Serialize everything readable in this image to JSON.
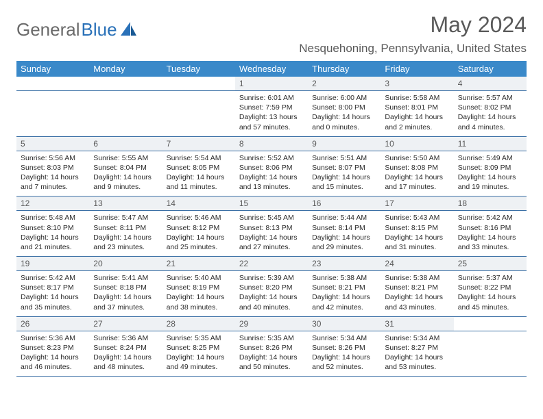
{
  "logo": {
    "part1": "General",
    "part2": "Blue"
  },
  "title": "May 2024",
  "location": "Nesquehoning, Pennsylvania, United States",
  "colors": {
    "header_bg": "#3a89c9",
    "header_text": "#ffffff",
    "daynum_bg": "#eef1f4",
    "daynum_text": "#595959",
    "body_text": "#2a2a2a",
    "title_text": "#595959",
    "logo_gray": "#6a6a6a",
    "logo_blue": "#2a71b8",
    "row_border": "#3a6fa5"
  },
  "day_labels": [
    "Sunday",
    "Monday",
    "Tuesday",
    "Wednesday",
    "Thursday",
    "Friday",
    "Saturday"
  ],
  "weeks": [
    [
      null,
      null,
      null,
      {
        "n": "1",
        "sr": "6:01 AM",
        "ss": "7:59 PM",
        "dl": "13 hours and 57 minutes."
      },
      {
        "n": "2",
        "sr": "6:00 AM",
        "ss": "8:00 PM",
        "dl": "14 hours and 0 minutes."
      },
      {
        "n": "3",
        "sr": "5:58 AM",
        "ss": "8:01 PM",
        "dl": "14 hours and 2 minutes."
      },
      {
        "n": "4",
        "sr": "5:57 AM",
        "ss": "8:02 PM",
        "dl": "14 hours and 4 minutes."
      }
    ],
    [
      {
        "n": "5",
        "sr": "5:56 AM",
        "ss": "8:03 PM",
        "dl": "14 hours and 7 minutes."
      },
      {
        "n": "6",
        "sr": "5:55 AM",
        "ss": "8:04 PM",
        "dl": "14 hours and 9 minutes."
      },
      {
        "n": "7",
        "sr": "5:54 AM",
        "ss": "8:05 PM",
        "dl": "14 hours and 11 minutes."
      },
      {
        "n": "8",
        "sr": "5:52 AM",
        "ss": "8:06 PM",
        "dl": "14 hours and 13 minutes."
      },
      {
        "n": "9",
        "sr": "5:51 AM",
        "ss": "8:07 PM",
        "dl": "14 hours and 15 minutes."
      },
      {
        "n": "10",
        "sr": "5:50 AM",
        "ss": "8:08 PM",
        "dl": "14 hours and 17 minutes."
      },
      {
        "n": "11",
        "sr": "5:49 AM",
        "ss": "8:09 PM",
        "dl": "14 hours and 19 minutes."
      }
    ],
    [
      {
        "n": "12",
        "sr": "5:48 AM",
        "ss": "8:10 PM",
        "dl": "14 hours and 21 minutes."
      },
      {
        "n": "13",
        "sr": "5:47 AM",
        "ss": "8:11 PM",
        "dl": "14 hours and 23 minutes."
      },
      {
        "n": "14",
        "sr": "5:46 AM",
        "ss": "8:12 PM",
        "dl": "14 hours and 25 minutes."
      },
      {
        "n": "15",
        "sr": "5:45 AM",
        "ss": "8:13 PM",
        "dl": "14 hours and 27 minutes."
      },
      {
        "n": "16",
        "sr": "5:44 AM",
        "ss": "8:14 PM",
        "dl": "14 hours and 29 minutes."
      },
      {
        "n": "17",
        "sr": "5:43 AM",
        "ss": "8:15 PM",
        "dl": "14 hours and 31 minutes."
      },
      {
        "n": "18",
        "sr": "5:42 AM",
        "ss": "8:16 PM",
        "dl": "14 hours and 33 minutes."
      }
    ],
    [
      {
        "n": "19",
        "sr": "5:42 AM",
        "ss": "8:17 PM",
        "dl": "14 hours and 35 minutes."
      },
      {
        "n": "20",
        "sr": "5:41 AM",
        "ss": "8:18 PM",
        "dl": "14 hours and 37 minutes."
      },
      {
        "n": "21",
        "sr": "5:40 AM",
        "ss": "8:19 PM",
        "dl": "14 hours and 38 minutes."
      },
      {
        "n": "22",
        "sr": "5:39 AM",
        "ss": "8:20 PM",
        "dl": "14 hours and 40 minutes."
      },
      {
        "n": "23",
        "sr": "5:38 AM",
        "ss": "8:21 PM",
        "dl": "14 hours and 42 minutes."
      },
      {
        "n": "24",
        "sr": "5:38 AM",
        "ss": "8:21 PM",
        "dl": "14 hours and 43 minutes."
      },
      {
        "n": "25",
        "sr": "5:37 AM",
        "ss": "8:22 PM",
        "dl": "14 hours and 45 minutes."
      }
    ],
    [
      {
        "n": "26",
        "sr": "5:36 AM",
        "ss": "8:23 PM",
        "dl": "14 hours and 46 minutes."
      },
      {
        "n": "27",
        "sr": "5:36 AM",
        "ss": "8:24 PM",
        "dl": "14 hours and 48 minutes."
      },
      {
        "n": "28",
        "sr": "5:35 AM",
        "ss": "8:25 PM",
        "dl": "14 hours and 49 minutes."
      },
      {
        "n": "29",
        "sr": "5:35 AM",
        "ss": "8:26 PM",
        "dl": "14 hours and 50 minutes."
      },
      {
        "n": "30",
        "sr": "5:34 AM",
        "ss": "8:26 PM",
        "dl": "14 hours and 52 minutes."
      },
      {
        "n": "31",
        "sr": "5:34 AM",
        "ss": "8:27 PM",
        "dl": "14 hours and 53 minutes."
      },
      null
    ]
  ],
  "labels": {
    "sunrise": "Sunrise:",
    "sunset": "Sunset:",
    "daylight": "Daylight:"
  }
}
